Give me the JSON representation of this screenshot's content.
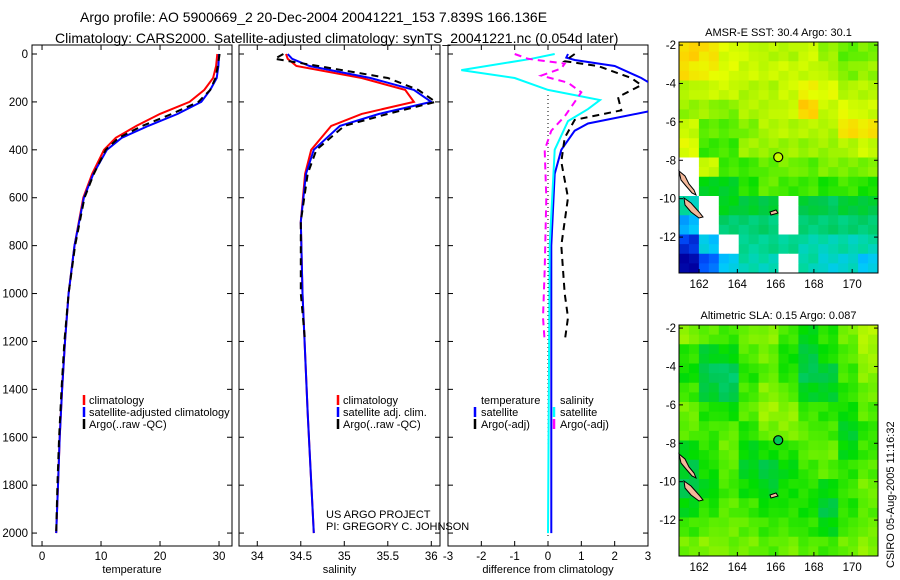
{
  "header": {
    "line1": "Argo profile: AO 5900669_2 20-Dec-2004 20041221_153 7.839S 166.136E",
    "line2": "Climatology: CARS2000. Satellite-adjusted climatology: synTS_20041221.nc (0.054d later)"
  },
  "credit": {
    "line1": "US ARGO PROJECT",
    "line2": "PI: GREGORY C. JOHNSON"
  },
  "stamp": "CSIRO 05-Aug-2005 11:16:32",
  "chart_data": [
    {
      "type": "line",
      "id": "temperature",
      "xlabel": "temperature",
      "ylabel": "",
      "xlim": [
        -1.7,
        32.2
      ],
      "ylim": [
        -37.6,
        2054
      ],
      "yreversed": true,
      "xticks": [
        0,
        10,
        20,
        30
      ],
      "yticks": [
        0,
        200,
        400,
        600,
        800,
        1000,
        1200,
        1400,
        1600,
        1800,
        2000
      ],
      "legend": [
        "climatology",
        "satellite-adjusted climatology",
        "Argo(..raw -QC)"
      ],
      "series": [
        {
          "name": "climatology",
          "color": "#ff0000",
          "dash": false,
          "depth": [
            0,
            50,
            100,
            150,
            200,
            250,
            300,
            350,
            400,
            500,
            600,
            800,
            1000,
            1200,
            1400,
            1600,
            1800,
            2000
          ],
          "values": [
            29.7,
            29.5,
            29.0,
            27.5,
            25.0,
            20.0,
            16.0,
            12.5,
            10.5,
            8.5,
            7.0,
            5.5,
            4.5,
            3.9,
            3.4,
            3.0,
            2.7,
            2.4
          ]
        },
        {
          "name": "satellite-adjusted climatology",
          "color": "#0000ff",
          "dash": false,
          "depth": [
            0,
            50,
            100,
            150,
            200,
            250,
            300,
            350,
            400,
            500,
            600,
            800,
            1000,
            1200,
            1400,
            1600,
            1800,
            2000
          ],
          "values": [
            30.0,
            29.9,
            29.6,
            28.5,
            27.0,
            23.0,
            18.0,
            13.5,
            11.0,
            8.7,
            7.1,
            5.5,
            4.5,
            3.9,
            3.4,
            3.0,
            2.7,
            2.4
          ]
        },
        {
          "name": "Argo(..raw -QC)",
          "color": "#000000",
          "dash": true,
          "depth": [
            0,
            50,
            100,
            150,
            200,
            250,
            300,
            350,
            400,
            500,
            600,
            800,
            1000,
            1200,
            1400,
            1600,
            1800,
            2000
          ],
          "values": [
            30.1,
            29.8,
            29.4,
            28.5,
            26.5,
            22.0,
            17.0,
            13.0,
            10.8,
            8.8,
            7.2,
            5.6,
            4.5,
            3.8,
            3.3,
            2.9,
            2.6,
            2.4
          ]
        }
      ]
    },
    {
      "type": "line",
      "id": "salinity",
      "xlabel": "salinity",
      "xlim": [
        33.79,
        36.1
      ],
      "ylim": [
        -37.6,
        2054
      ],
      "yreversed": true,
      "xticks": [
        34,
        34.5,
        35,
        35.5,
        36
      ],
      "legend": [
        "climatology",
        "satellite adj. clim.",
        "Argo(..raw -QC)"
      ],
      "series": [
        {
          "name": "climatology",
          "color": "#ff0000",
          "dash": false,
          "depth": [
            0,
            20,
            50,
            100,
            150,
            200,
            250,
            300,
            400,
            500,
            700,
            1000,
            1500,
            2000
          ],
          "values": [
            34.33,
            34.35,
            34.45,
            35.2,
            35.7,
            35.8,
            35.2,
            34.85,
            34.62,
            34.55,
            34.5,
            34.52,
            34.58,
            34.65
          ]
        },
        {
          "name": "satellite adj. clim.",
          "color": "#0000ff",
          "dash": false,
          "depth": [
            0,
            20,
            50,
            100,
            150,
            200,
            250,
            300,
            400,
            500,
            700,
            1000,
            1500,
            2000
          ],
          "values": [
            34.35,
            34.4,
            34.6,
            35.3,
            35.8,
            36.0,
            35.4,
            34.95,
            34.65,
            34.56,
            34.5,
            34.52,
            34.58,
            34.65
          ]
        },
        {
          "name": "Argo(..raw -QC)",
          "color": "#000000",
          "dash": true,
          "depth": [
            0,
            20,
            50,
            100,
            150,
            200,
            250,
            300,
            400,
            500,
            700,
            1000,
            1200
          ],
          "values": [
            34.3,
            34.2,
            34.7,
            35.5,
            35.85,
            36.05,
            35.5,
            35.0,
            34.68,
            34.58,
            34.5,
            34.5,
            34.55
          ]
        }
      ]
    },
    {
      "type": "line",
      "id": "difference",
      "xlabel": "difference from climatology",
      "xlim": [
        -3,
        3
      ],
      "ylim": [
        -37.6,
        2054
      ],
      "yreversed": true,
      "xticks": [
        -3,
        -2,
        -1,
        0,
        1,
        2,
        3
      ],
      "legend_groups": [
        {
          "title": "temperature",
          "items": [
            "satellite",
            "Argo(-adj)"
          ]
        },
        {
          "title": "salinity",
          "items": [
            "satellite",
            "Argo(-adj)"
          ]
        }
      ],
      "series": [
        {
          "name": "temperature satellite",
          "color": "#0000ff",
          "dash": false,
          "depth": [
            0,
            15,
            25,
            50,
            100,
            150,
            200,
            240,
            290,
            320,
            400,
            500,
            800,
            1200,
            2000
          ],
          "values": [
            0.6,
            0.55,
            0.8,
            2.0,
            2.8,
            3.4,
            3.5,
            3.0,
            1.2,
            0.8,
            0.4,
            0.2,
            0.1,
            0.1,
            0.1
          ]
        },
        {
          "name": "temperature Argo(-adj)",
          "color": "#000000",
          "dash": true,
          "depth": [
            0,
            30,
            50,
            100,
            130,
            180,
            235,
            275,
            350,
            450,
            600,
            800,
            1000,
            1100,
            1200
          ],
          "values": [
            0.8,
            0.5,
            1.5,
            2.5,
            2.8,
            2.1,
            2.2,
            0.8,
            0.5,
            0.4,
            0.6,
            0.4,
            0.5,
            0.6,
            0.5
          ]
        },
        {
          "name": "salinity satellite",
          "color": "#00ffff",
          "dash": false,
          "depth": [
            0,
            20,
            67,
            100,
            150,
            192,
            230,
            280,
            400,
            800,
            2000
          ],
          "values": [
            0.2,
            -0.5,
            -2.6,
            -1.0,
            0.0,
            1.56,
            1.2,
            0.6,
            0.2,
            0.05,
            0.0
          ]
        },
        {
          "name": "salinity Argo(-adj)",
          "color": "#ff00ff",
          "dash": true,
          "depth": [
            0,
            20,
            40,
            60,
            90,
            120,
            160,
            200,
            260,
            320,
            400,
            600,
            900,
            1100,
            1200
          ],
          "values": [
            -1.0,
            -0.6,
            0.5,
            0.4,
            -0.2,
            0.6,
            1.0,
            0.8,
            0.5,
            0.1,
            -0.1,
            -0.05,
            -0.1,
            -0.15,
            -0.1
          ]
        }
      ]
    },
    {
      "type": "heatmap",
      "id": "sst-map",
      "title": "AMSR-E SST: 30.4 Argo: 30.1",
      "xlim": [
        160.95,
        171.35
      ],
      "ylim": [
        -13.87,
        -1.84
      ],
      "xticks": [
        162,
        164,
        166,
        168,
        170
      ],
      "yticks": [
        -2,
        -4,
        -6,
        -8,
        -10,
        -12
      ],
      "clim": [
        28.0,
        30.8
      ],
      "argo_position": {
        "lon": 166.136,
        "lat": -7.839,
        "value": 30.1
      },
      "lat_rows": [
        -2,
        -14
      ],
      "grid": [
        [
          30.5,
          30.4,
          30.2,
          30.1,
          30.0,
          30.0,
          30.1,
          29.9,
          29.7,
          29.8
        ],
        [
          30.4,
          30.3,
          30.2,
          30.1,
          30.1,
          30.1,
          30.1,
          30.0,
          29.8,
          29.9
        ],
        [
          30.0,
          30.1,
          30.1,
          30.0,
          30.0,
          30.1,
          30.3,
          30.2,
          30.0,
          30.0
        ],
        [
          29.9,
          29.9,
          29.8,
          30.0,
          30.0,
          30.1,
          30.5,
          30.1,
          30.2,
          30.1
        ],
        [
          30.1,
          29.7,
          29.7,
          29.8,
          30.0,
          30.0,
          30.0,
          30.0,
          30.4,
          30.4
        ],
        [
          30.2,
          29.6,
          29.6,
          29.9,
          29.9,
          29.9,
          29.9,
          29.9,
          30.0,
          30.1
        ],
        [
          null,
          30.1,
          29.6,
          29.6,
          29.7,
          29.8,
          29.7,
          29.8,
          29.8,
          29.8
        ],
        [
          null,
          29.3,
          29.3,
          29.5,
          29.7,
          29.6,
          29.6,
          29.5,
          29.6,
          29.5
        ],
        [
          28.8,
          null,
          29.3,
          29.2,
          29.2,
          null,
          29.2,
          29.1,
          29.2,
          29.2
        ],
        [
          28.5,
          null,
          29.0,
          29.0,
          29.0,
          null,
          29.0,
          29.0,
          29.0,
          29.0
        ],
        [
          28.2,
          28.6,
          null,
          28.9,
          28.9,
          28.9,
          28.8,
          28.8,
          28.8,
          28.8
        ],
        [
          28.0,
          28.3,
          28.6,
          28.8,
          28.8,
          null,
          28.8,
          28.7,
          28.7,
          28.6
        ]
      ]
    },
    {
      "type": "heatmap",
      "id": "sla-map",
      "title": "Altimetric SLA: 0.15 Argo: 0.087",
      "xlim": [
        160.95,
        171.35
      ],
      "ylim": [
        -13.87,
        -1.84
      ],
      "xticks": [
        162,
        164,
        166,
        168,
        170
      ],
      "yticks": [
        -2,
        -4,
        -6,
        -8,
        -10,
        -12
      ],
      "clim": [
        -0.05,
        0.3
      ],
      "argo_position": {
        "lon": 166.136,
        "lat": -7.839,
        "value": 0.087
      },
      "grid": [
        [
          0.18,
          0.16,
          0.15,
          0.17,
          0.18,
          0.15,
          0.12,
          0.14,
          0.17,
          0.2
        ],
        [
          0.14,
          0.11,
          0.12,
          0.16,
          0.17,
          0.13,
          0.1,
          0.13,
          0.16,
          0.19
        ],
        [
          0.13,
          0.09,
          0.08,
          0.14,
          0.16,
          0.14,
          0.09,
          0.1,
          0.15,
          0.18
        ],
        [
          0.15,
          0.1,
          0.09,
          0.15,
          0.18,
          0.16,
          0.11,
          0.11,
          0.14,
          0.17
        ],
        [
          0.17,
          0.14,
          0.13,
          0.16,
          0.19,
          0.18,
          0.15,
          0.14,
          0.13,
          0.16
        ],
        [
          0.16,
          0.15,
          0.16,
          0.14,
          0.17,
          0.18,
          0.16,
          0.15,
          0.11,
          0.14
        ],
        [
          0.12,
          0.14,
          0.17,
          0.12,
          0.13,
          0.14,
          0.16,
          0.17,
          0.12,
          0.15
        ],
        [
          0.1,
          0.13,
          0.16,
          0.11,
          0.1,
          0.12,
          0.15,
          0.16,
          0.14,
          0.16
        ],
        [
          0.09,
          0.12,
          0.15,
          0.13,
          0.11,
          0.13,
          0.14,
          0.12,
          0.15,
          0.17
        ],
        [
          0.12,
          0.14,
          0.16,
          0.15,
          0.13,
          0.14,
          0.13,
          0.1,
          0.14,
          0.16
        ],
        [
          0.15,
          0.16,
          0.17,
          0.16,
          0.15,
          0.15,
          0.14,
          0.12,
          0.15,
          0.17
        ],
        [
          0.17,
          0.18,
          0.17,
          0.17,
          0.16,
          0.17,
          0.16,
          0.15,
          0.17,
          0.18
        ]
      ]
    }
  ],
  "colormap": [
    "#0000a0",
    "#0050ff",
    "#00c8ff",
    "#00d8a0",
    "#00c850",
    "#00dd00",
    "#55ee00",
    "#aaf500",
    "#e6ff00",
    "#ffd000",
    "#ff9900"
  ]
}
